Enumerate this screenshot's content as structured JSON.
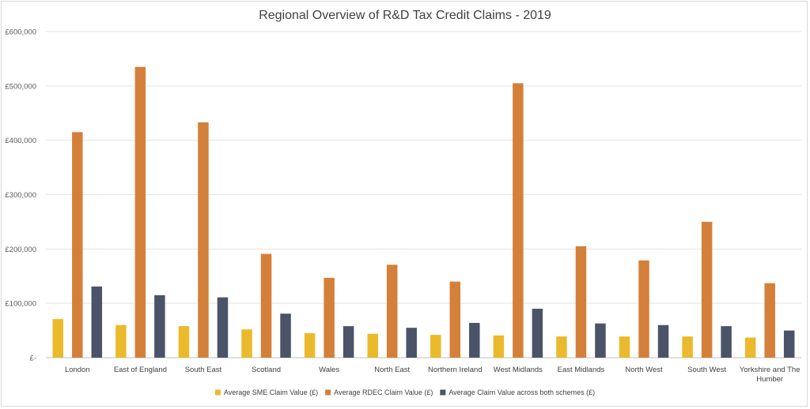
{
  "chart_data": {
    "type": "bar",
    "title": "Regional Overview of R&D Tax Credit Claims - 2019",
    "xlabel": "",
    "ylabel": "",
    "ylim": [
      0,
      600000
    ],
    "yticks": [
      0,
      100000,
      200000,
      300000,
      400000,
      500000,
      600000
    ],
    "ytick_labels": [
      "£-",
      "£100,000",
      "£200,000",
      "£300,000",
      "£400,000",
      "£500,000",
      "£600,000"
    ],
    "grid": true,
    "legend_position": "bottom",
    "categories": [
      [
        "London"
      ],
      [
        "East of England"
      ],
      [
        "South East"
      ],
      [
        "Scotland"
      ],
      [
        "Wales"
      ],
      [
        "North East"
      ],
      [
        "Northern Ireland"
      ],
      [
        "West Midlands"
      ],
      [
        "East Midlands"
      ],
      [
        "North West"
      ],
      [
        "South West"
      ],
      [
        "Yorkshire and The",
        "Humber"
      ]
    ],
    "series": [
      {
        "name": "Average SME Claim Value (£)",
        "color": "#EBBA2C",
        "values": [
          71000,
          60000,
          58000,
          52000,
          45000,
          44000,
          42000,
          41000,
          39000,
          39000,
          39000,
          37000
        ]
      },
      {
        "name": "Average RDEC Claim Value (£)",
        "color": "#D4803A",
        "values": [
          415000,
          535000,
          433000,
          191000,
          147000,
          171000,
          140000,
          505000,
          205000,
          179000,
          250000,
          137000
        ]
      },
      {
        "name": "Average Claim Value across both schemes (£)",
        "color": "#4A5368",
        "values": [
          131000,
          115000,
          111000,
          81000,
          58000,
          55000,
          64000,
          90000,
          63000,
          60000,
          58000,
          50000
        ]
      }
    ]
  }
}
